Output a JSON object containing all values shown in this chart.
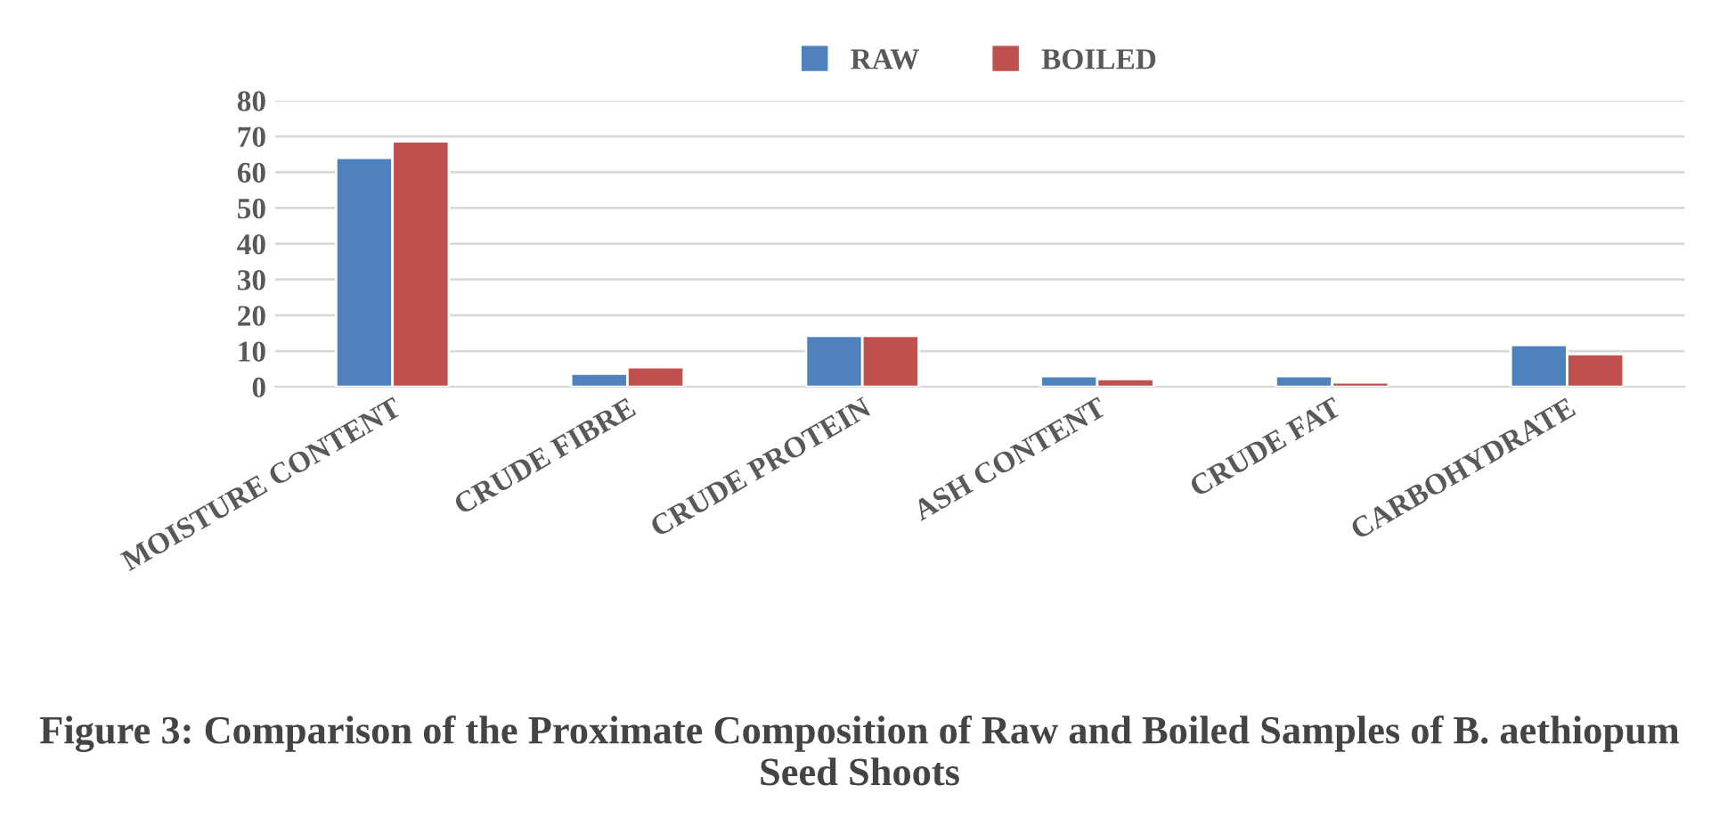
{
  "chart_data": {
    "type": "bar",
    "title": "Figure 3: Comparison of the Proximate Composition of Raw and Boiled Samples of B. aethiopum Seed Shoots",
    "categories": [
      "MOISTURE CONTENT",
      "CRUDE FIBRE",
      "CRUDE PROTEIN",
      "ASH CONTENT",
      "CRUDE FAT",
      "CARBOHYDRATE"
    ],
    "series": [
      {
        "name": "RAW",
        "color": "#4f81bd",
        "values": [
          64.0,
          3.7,
          14.3,
          3.0,
          3.0,
          11.7
        ]
      },
      {
        "name": "BOILED",
        "color": "#c0504d",
        "values": [
          68.6,
          5.5,
          14.3,
          2.2,
          1.3,
          9.2
        ]
      }
    ],
    "ylim": [
      0,
      80
    ],
    "yticks": [
      0,
      10,
      20,
      30,
      40,
      50,
      60,
      70,
      80
    ],
    "grid": "y",
    "legend": "top"
  }
}
